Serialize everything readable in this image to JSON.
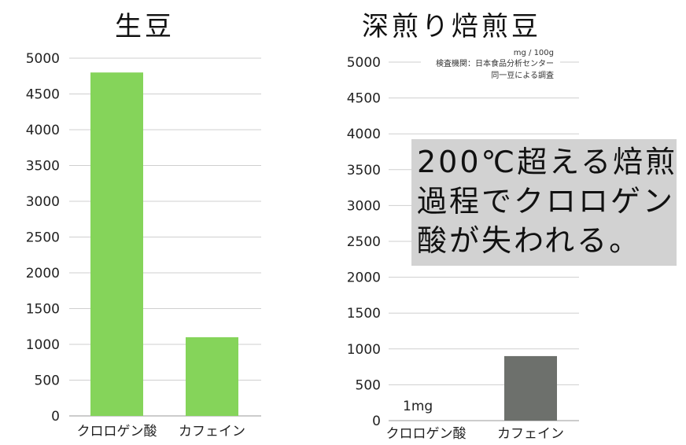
{
  "chart_data": [
    {
      "type": "bar",
      "title": "生豆",
      "categories": [
        "クロロゲン酸",
        "カフェイン"
      ],
      "values": [
        4800,
        1100
      ],
      "ylim": [
        0,
        5000
      ],
      "yticks": [
        0,
        500,
        1000,
        1500,
        2000,
        2500,
        3000,
        3500,
        4000,
        4500,
        5000
      ],
      "bar_color": "#85d45a",
      "grid": true
    },
    {
      "type": "bar",
      "title": "深煎り焙煎豆",
      "categories": [
        "クロロゲン酸",
        "カフェイン"
      ],
      "values": [
        1,
        900
      ],
      "data_labels": [
        "1mg",
        ""
      ],
      "ylim": [
        0,
        5000
      ],
      "yticks": [
        0,
        500,
        1000,
        1500,
        2000,
        2500,
        3000,
        3500,
        4000,
        4500,
        5000
      ],
      "bar_color": "#6d706c",
      "grid": true,
      "annotations": [
        "mg / 100g",
        "検査機関：日本食品分析センター",
        "同一豆による調査"
      ]
    }
  ],
  "callout": {
    "lines": [
      "200℃超える焙煎",
      "過程でクロロゲン",
      "酸が失われる。"
    ],
    "background": "#d2d2d2"
  }
}
